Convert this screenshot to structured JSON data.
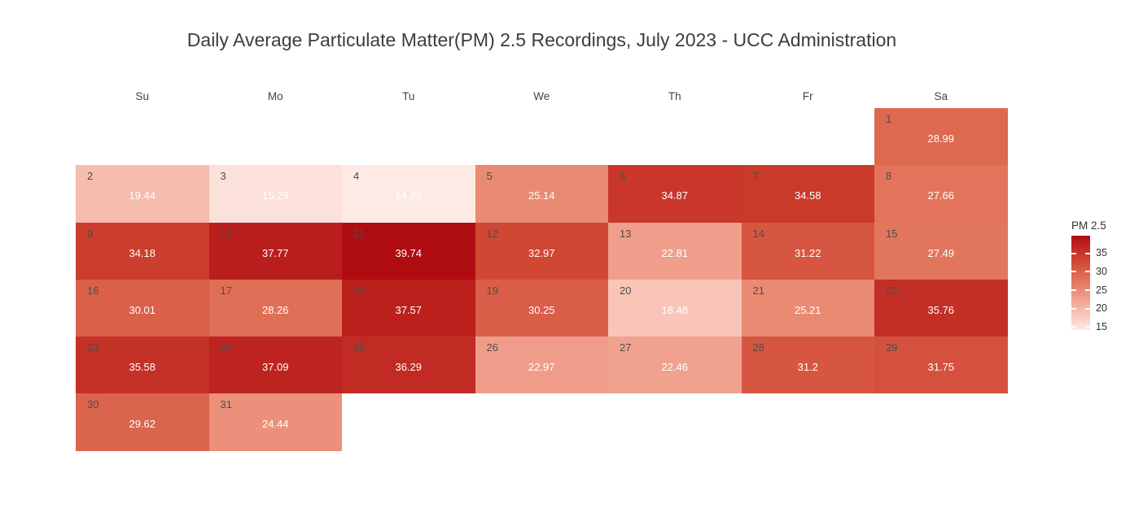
{
  "title": "Daily Average Particulate Matter(PM) 2.5 Recordings, July 2023 - UCC Administration",
  "colors": {
    "background": "#ffffff",
    "title_text": "#3d3d3d",
    "header_text": "#444444",
    "day_number_text": "#4d4d4d",
    "value_text": "#ffffff",
    "scale_stops": [
      {
        "t": 0.0,
        "color": "#fdeae5"
      },
      {
        "t": 0.25,
        "color": "#f5b2a2"
      },
      {
        "t": 0.5,
        "color": "#e47a60"
      },
      {
        "t": 0.75,
        "color": "#cf4431"
      },
      {
        "t": 1.0,
        "color": "#b00d13"
      }
    ]
  },
  "chart_data": {
    "type": "heatmap",
    "subtype": "calendar",
    "title": "Daily Average Particulate Matter(PM) 2.5 Recordings, July 2023 - UCC Administration",
    "month": "July 2023",
    "weekdays": [
      "Su",
      "Mo",
      "Tu",
      "We",
      "Th",
      "Fr",
      "Sa"
    ],
    "first_day_col": 6,
    "zmin": 14.23,
    "zmax": 39.74,
    "colorbar_title": "PM 2.5",
    "colorbar_ticks": [
      35,
      30,
      25,
      20,
      15
    ],
    "days": [
      {
        "day": 1,
        "value": 28.99
      },
      {
        "day": 2,
        "value": 19.44
      },
      {
        "day": 3,
        "value": 15.29
      },
      {
        "day": 4,
        "value": 14.23
      },
      {
        "day": 5,
        "value": 25.14
      },
      {
        "day": 6,
        "value": 34.87
      },
      {
        "day": 7,
        "value": 34.58
      },
      {
        "day": 8,
        "value": 27.66
      },
      {
        "day": 9,
        "value": 34.18
      },
      {
        "day": 10,
        "value": 37.77
      },
      {
        "day": 11,
        "value": 39.74
      },
      {
        "day": 12,
        "value": 32.97
      },
      {
        "day": 13,
        "value": 22.81
      },
      {
        "day": 14,
        "value": 31.22
      },
      {
        "day": 15,
        "value": 27.49
      },
      {
        "day": 16,
        "value": 30.01
      },
      {
        "day": 17,
        "value": 28.26
      },
      {
        "day": 18,
        "value": 37.57
      },
      {
        "day": 19,
        "value": 30.25
      },
      {
        "day": 20,
        "value": 18.48
      },
      {
        "day": 21,
        "value": 25.21
      },
      {
        "day": 22,
        "value": 35.76
      },
      {
        "day": 23,
        "value": 35.58
      },
      {
        "day": 24,
        "value": 37.09
      },
      {
        "day": 25,
        "value": 36.29
      },
      {
        "day": 26,
        "value": 22.97
      },
      {
        "day": 27,
        "value": 22.46
      },
      {
        "day": 28,
        "value": 31.2
      },
      {
        "day": 29,
        "value": 31.75
      },
      {
        "day": 30,
        "value": 29.62
      },
      {
        "day": 31,
        "value": 24.44
      }
    ]
  }
}
